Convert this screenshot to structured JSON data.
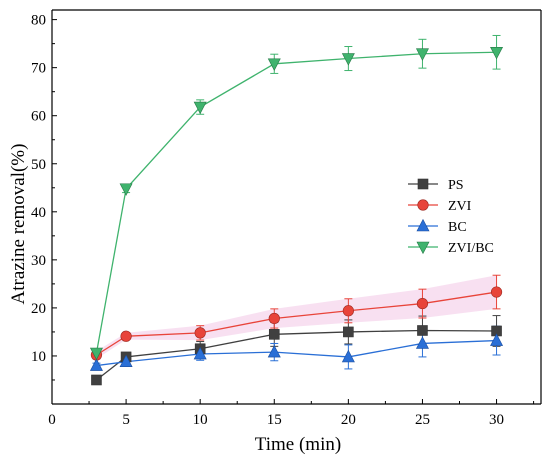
{
  "chart_data": {
    "type": "line",
    "xlabel": "Time (min)",
    "ylabel": "Atrazine removal(%)",
    "xlim": [
      0,
      33
    ],
    "ylim": [
      0,
      82
    ],
    "xticks": [
      0,
      5,
      10,
      15,
      20,
      25,
      30
    ],
    "yticks": [
      10,
      20,
      30,
      40,
      50,
      60,
      70,
      80
    ],
    "x": [
      3,
      5,
      10,
      15,
      20,
      25,
      30
    ],
    "legend_position": "right-middle",
    "grid": false,
    "series": [
      {
        "name": "PS",
        "color": "#404040",
        "marker": "square",
        "values": [
          5.0,
          9.8,
          11.5,
          14.5,
          15.0,
          15.3,
          15.2
        ],
        "errors": [
          0.3,
          0.5,
          1.5,
          2.5,
          2.5,
          3.0,
          3.2
        ],
        "band_color": ""
      },
      {
        "name": "ZVI",
        "color": "#e8443a",
        "marker": "circle",
        "values": [
          10.2,
          14.1,
          14.8,
          17.8,
          19.4,
          20.9,
          23.3
        ],
        "errors": [
          0.8,
          0.7,
          1.5,
          2.0,
          2.5,
          3.0,
          3.5
        ],
        "band_color": "#f3c6e6"
      },
      {
        "name": "BC",
        "color": "#2a6fd6",
        "marker": "triangle-up",
        "values": [
          8.0,
          8.8,
          10.4,
          10.8,
          9.8,
          12.6,
          13.2
        ],
        "errors": [
          0.5,
          0.8,
          1.3,
          1.8,
          2.5,
          2.8,
          3.0
        ],
        "band_color": ""
      },
      {
        "name": "ZVI/BC",
        "color": "#3fb36d",
        "marker": "triangle-down",
        "values": [
          10.6,
          44.8,
          61.8,
          70.8,
          71.9,
          72.9,
          73.2
        ],
        "errors": [
          0.7,
          0.8,
          1.5,
          2.0,
          2.5,
          3.0,
          3.5
        ],
        "band_color": ""
      }
    ]
  }
}
